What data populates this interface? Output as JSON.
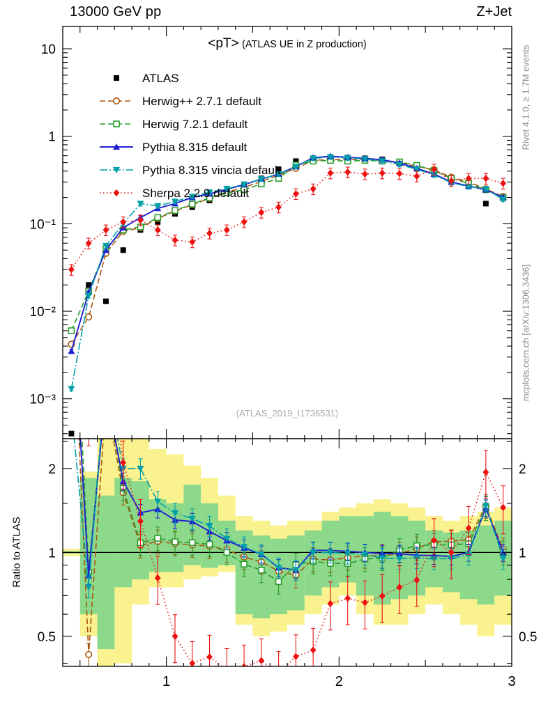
{
  "header": {
    "left": "13000 GeV pp",
    "right": "Z+Jet"
  },
  "title": {
    "main": "<pT>",
    "suffix": " (ATLAS UE in Z production)"
  },
  "watermark": "(ATLAS_2019_I1736531)",
  "side_notes": {
    "top_right": "Rivet 4.1.0, ≥ 1.7M events",
    "bottom_right": "mcplots.cern.ch [arXiv:1306.3436]"
  },
  "ratio_label": "Ratio to ATLAS",
  "chart_data": {
    "type": "line",
    "title": "<pT> (ATLAS UE in Z production)",
    "x": [
      0.45,
      0.55,
      0.65,
      0.75,
      0.85,
      0.95,
      1.05,
      1.15,
      1.25,
      1.35,
      1.45,
      1.55,
      1.65,
      1.75,
      1.85,
      1.95,
      2.05,
      2.15,
      2.25,
      2.35,
      2.45,
      2.55,
      2.65,
      2.75,
      2.85,
      2.95
    ],
    "series": [
      {
        "name": "ATLAS",
        "color": "#000000",
        "marker": "square-filled",
        "line": "none",
        "err_frac": 0.05,
        "values": [
          0.0004,
          0.02,
          0.013,
          0.05,
          0.085,
          0.105,
          0.13,
          0.155,
          0.185,
          0.225,
          0.27,
          0.33,
          0.42,
          0.52,
          0.56,
          0.58,
          0.57,
          0.56,
          0.545,
          0.5,
          0.44,
          0.38,
          0.31,
          0.27,
          0.17,
          0.2
        ]
      },
      {
        "name": "Herwig++ 2.7.1 default",
        "color": "#a9570f",
        "marker": "circle-open",
        "line": "dash",
        "err_frac": 0.07,
        "values": [
          0.0042,
          0.0086,
          0.046,
          0.082,
          0.09,
          0.115,
          0.14,
          0.165,
          0.195,
          0.23,
          0.26,
          0.305,
          0.36,
          0.43,
          0.53,
          0.545,
          0.545,
          0.545,
          0.53,
          0.495,
          0.455,
          0.415,
          0.34,
          0.3,
          0.25,
          0.205
        ]
      },
      {
        "name": "Herwig 7.2.1 default",
        "color": "#2b9b2b",
        "marker": "square-open",
        "line": "dash",
        "err_frac": 0.07,
        "values": [
          0.006,
          0.017,
          0.052,
          0.085,
          0.092,
          0.118,
          0.142,
          0.168,
          0.198,
          0.225,
          0.245,
          0.285,
          0.33,
          0.47,
          0.52,
          0.53,
          0.52,
          0.53,
          0.52,
          0.51,
          0.465,
          0.405,
          0.33,
          0.29,
          0.245,
          0.2
        ]
      },
      {
        "name": "Pythia 8.315 default",
        "color": "#2020d0",
        "marker": "triangle-up-filled",
        "line": "solid",
        "err_frac": 0.05,
        "values": [
          0.0035,
          0.0165,
          0.05,
          0.09,
          0.118,
          0.15,
          0.17,
          0.2,
          0.22,
          0.248,
          0.28,
          0.325,
          0.37,
          0.45,
          0.57,
          0.59,
          0.575,
          0.56,
          0.54,
          0.495,
          0.43,
          0.37,
          0.3,
          0.27,
          0.245,
          0.2
        ]
      },
      {
        "name": "Pythia 8.315 vincia default",
        "color": "#00a0a8",
        "marker": "triangle-down-filled",
        "line": "dashdot",
        "err_frac": 0.06,
        "values": [
          0.0013,
          0.015,
          0.056,
          0.1,
          0.17,
          0.16,
          0.18,
          0.205,
          0.23,
          0.252,
          0.283,
          0.325,
          0.37,
          0.45,
          0.56,
          0.58,
          0.565,
          0.55,
          0.52,
          0.475,
          0.42,
          0.36,
          0.295,
          0.265,
          0.25,
          0.19
        ]
      },
      {
        "name": "Sherpa 2.2.9 default",
        "color": "#ee1111",
        "marker": "diamond-filled",
        "line": "dot",
        "err_frac": 0.14,
        "values": [
          0.03,
          0.06,
          0.085,
          0.105,
          0.11,
          0.085,
          0.065,
          0.062,
          0.078,
          0.085,
          0.105,
          0.135,
          0.155,
          0.22,
          0.25,
          0.38,
          0.39,
          0.37,
          0.38,
          0.375,
          0.35,
          0.42,
          0.31,
          0.33,
          0.33,
          0.29
        ]
      }
    ],
    "bands": {
      "yellow_color": "#faf18f",
      "green_color": "#8cd98c",
      "yellow": [
        [
          0.97,
          1.03
        ],
        [
          0.5,
          1.95
        ],
        [
          0.3,
          2.6
        ],
        [
          0.4,
          2.6
        ],
        [
          0.65,
          2.6
        ],
        [
          0.75,
          2.35
        ],
        [
          0.75,
          2.25
        ],
        [
          0.8,
          2.05
        ],
        [
          0.82,
          1.85
        ],
        [
          0.85,
          1.6
        ],
        [
          0.55,
          1.35
        ],
        [
          0.5,
          1.3
        ],
        [
          0.52,
          1.25
        ],
        [
          0.55,
          1.3
        ],
        [
          0.6,
          1.3
        ],
        [
          0.65,
          1.4
        ],
        [
          0.7,
          1.45
        ],
        [
          0.6,
          1.5
        ],
        [
          0.55,
          1.55
        ],
        [
          0.55,
          1.5
        ],
        [
          0.6,
          1.45
        ],
        [
          0.65,
          1.35
        ],
        [
          0.6,
          1.3
        ],
        [
          0.55,
          1.35
        ],
        [
          0.5,
          1.4
        ],
        [
          0.55,
          1.45
        ]
      ],
      "green": [
        [
          0.99,
          1.01
        ],
        [
          0.6,
          1.85
        ],
        [
          0.45,
          1.6
        ],
        [
          0.75,
          1.85
        ],
        [
          0.8,
          1.8
        ],
        [
          0.85,
          1.55
        ],
        [
          0.85,
          1.5
        ],
        [
          0.9,
          1.75
        ],
        [
          0.88,
          1.5
        ],
        [
          0.9,
          1.3
        ],
        [
          0.6,
          1.2
        ],
        [
          0.58,
          1.15
        ],
        [
          0.6,
          1.12
        ],
        [
          0.62,
          1.15
        ],
        [
          0.7,
          1.2
        ],
        [
          0.75,
          1.3
        ],
        [
          0.78,
          1.35
        ],
        [
          0.7,
          1.35
        ],
        [
          0.65,
          1.4
        ],
        [
          0.68,
          1.35
        ],
        [
          0.7,
          1.3
        ],
        [
          0.75,
          1.2
        ],
        [
          0.72,
          1.18
        ],
        [
          0.68,
          1.2
        ],
        [
          0.65,
          1.25
        ],
        [
          0.7,
          1.3
        ]
      ]
    },
    "axes": {
      "x": {
        "min": 0.4,
        "max": 3.0,
        "ticks": [
          {
            "v": 1,
            "t": "1"
          },
          {
            "v": 2,
            "t": "2"
          },
          {
            "v": 3,
            "t": "3"
          }
        ],
        "minor_step": 0.1
      },
      "y_main": {
        "scale": "log",
        "min": 0.00035,
        "max": 18,
        "tick_labels": [
          {
            "v": 10,
            "t": "10"
          },
          {
            "v": 1,
            "t": "1"
          },
          {
            "v": 0.1,
            "t": "10⁻¹"
          },
          {
            "v": 0.01,
            "t": "10⁻²"
          },
          {
            "v": 0.001,
            "t": "10⁻³"
          }
        ]
      },
      "y_ratio": {
        "scale": "log",
        "min": 0.39,
        "max": 2.56,
        "ref_line": 1,
        "ticks": [
          {
            "v": 0.5,
            "t": "0.5"
          },
          {
            "v": 1,
            "t": "1"
          },
          {
            "v": 2,
            "t": "2"
          }
        ],
        "minor_ticks": [
          0.4,
          0.6,
          0.7,
          0.8,
          0.9,
          1.5,
          2.5
        ]
      }
    },
    "legend_position": "top-left-inside"
  }
}
